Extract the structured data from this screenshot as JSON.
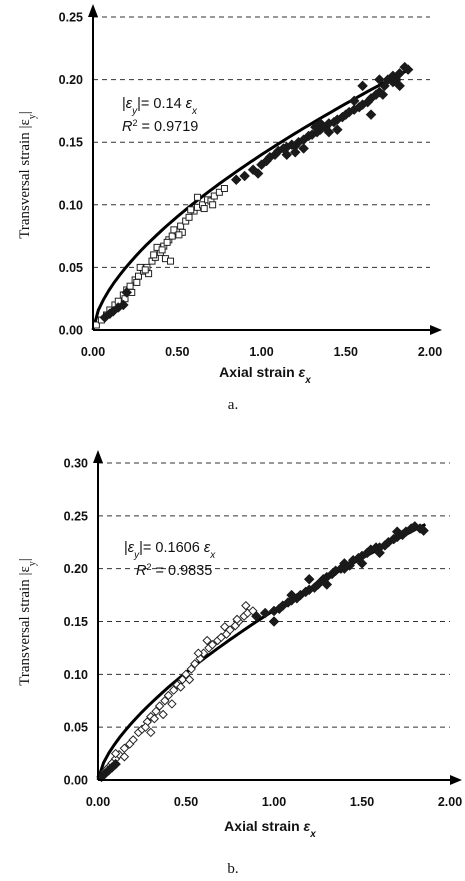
{
  "chart_data": [
    {
      "type": "scatter",
      "panel_caption": "a.",
      "xlabel": "Axial strain",
      "xlabel_symbol": "ε",
      "xlabel_sub": "x",
      "ylabel": "Transversal strain |ε",
      "ylabel_sub": "y",
      "ylabel_end": "|",
      "xlim": [
        0,
        2.0
      ],
      "ylim": [
        0,
        0.25
      ],
      "xticks": [
        "0.00",
        "0.50",
        "1.00",
        "1.50",
        "2.00"
      ],
      "yticks": [
        "0.00",
        "0.05",
        "0.10",
        "0.15",
        "0.20",
        "0.25"
      ],
      "grid": "horizontal dashed",
      "equation": {
        "line1_prefix": "|",
        "line1_sym": "ε",
        "line1_sub": "y",
        "line1_mid": "|= 0.14 ",
        "line1_sym2": "ε",
        "line1_sub2": "x",
        "line2_R": "R",
        "line2_sup": "2",
        "line2_val": " = 0.9719"
      },
      "fit": {
        "type": "power",
        "coef": 0.14,
        "exp": 0.63
      },
      "series": [
        {
          "marker": "open-square",
          "points": [
            [
              0.02,
              0.004
            ],
            [
              0.05,
              0.008
            ],
            [
              0.08,
              0.012
            ],
            [
              0.1,
              0.016
            ],
            [
              0.13,
              0.02
            ],
            [
              0.15,
              0.023
            ],
            [
              0.18,
              0.028
            ],
            [
              0.2,
              0.032
            ],
            [
              0.22,
              0.035
            ],
            [
              0.25,
              0.04
            ],
            [
              0.27,
              0.043
            ],
            [
              0.3,
              0.047
            ],
            [
              0.32,
              0.05
            ],
            [
              0.35,
              0.055
            ],
            [
              0.37,
              0.058
            ],
            [
              0.4,
              0.062
            ],
            [
              0.42,
              0.067
            ],
            [
              0.45,
              0.072
            ],
            [
              0.47,
              0.075
            ],
            [
              0.5,
              0.079
            ],
            [
              0.52,
              0.083
            ],
            [
              0.55,
              0.087
            ],
            [
              0.57,
              0.09
            ],
            [
              0.6,
              0.095
            ],
            [
              0.62,
              0.098
            ],
            [
              0.65,
              0.1
            ],
            [
              0.68,
              0.104
            ],
            [
              0.7,
              0.103
            ],
            [
              0.72,
              0.107
            ],
            [
              0.75,
              0.11
            ],
            [
              0.78,
              0.113
            ],
            [
              0.28,
              0.05
            ],
            [
              0.33,
              0.045
            ],
            [
              0.38,
              0.066
            ],
            [
              0.48,
              0.08
            ],
            [
              0.53,
              0.078
            ],
            [
              0.58,
              0.096
            ],
            [
              0.62,
              0.106
            ],
            [
              0.43,
              0.057
            ],
            [
              0.46,
              0.055
            ],
            [
              0.26,
              0.038
            ],
            [
              0.36,
              0.06
            ],
            [
              0.44,
              0.07
            ],
            [
              0.66,
              0.097
            ],
            [
              0.71,
              0.1
            ],
            [
              0.19,
              0.025
            ],
            [
              0.23,
              0.03
            ],
            [
              0.31,
              0.048
            ],
            [
              0.41,
              0.064
            ],
            [
              0.51,
              0.076
            ]
          ]
        },
        {
          "marker": "filled-diamond",
          "points": [
            [
              0.07,
              0.01
            ],
            [
              0.1,
              0.013
            ],
            [
              0.12,
              0.015
            ],
            [
              0.15,
              0.018
            ],
            [
              0.18,
              0.02
            ],
            [
              0.2,
              0.03
            ],
            [
              0.85,
              0.12
            ],
            [
              0.9,
              0.123
            ],
            [
              0.95,
              0.128
            ],
            [
              1.0,
              0.132
            ],
            [
              1.03,
              0.135
            ],
            [
              1.05,
              0.138
            ],
            [
              1.08,
              0.14
            ],
            [
              1.1,
              0.143
            ],
            [
              1.13,
              0.145
            ],
            [
              1.15,
              0.146
            ],
            [
              1.18,
              0.148
            ],
            [
              1.2,
              0.147
            ],
            [
              1.22,
              0.15
            ],
            [
              1.25,
              0.152
            ],
            [
              1.28,
              0.155
            ],
            [
              1.3,
              0.156
            ],
            [
              1.33,
              0.158
            ],
            [
              1.35,
              0.16
            ],
            [
              1.38,
              0.162
            ],
            [
              1.4,
              0.165
            ],
            [
              1.43,
              0.166
            ],
            [
              1.45,
              0.168
            ],
            [
              1.48,
              0.17
            ],
            [
              1.5,
              0.172
            ],
            [
              1.52,
              0.174
            ],
            [
              1.55,
              0.176
            ],
            [
              1.58,
              0.178
            ],
            [
              1.6,
              0.18
            ],
            [
              1.63,
              0.182
            ],
            [
              1.65,
              0.185
            ],
            [
              1.68,
              0.188
            ],
            [
              1.7,
              0.19
            ],
            [
              1.73,
              0.195
            ],
            [
              1.75,
              0.2
            ],
            [
              1.78,
              0.203
            ],
            [
              1.8,
              0.2
            ],
            [
              1.82,
              0.205
            ],
            [
              1.85,
              0.21
            ],
            [
              1.87,
              0.208
            ],
            [
              1.65,
              0.172
            ],
            [
              1.72,
              0.188
            ],
            [
              1.6,
              0.195
            ],
            [
              1.55,
              0.183
            ],
            [
              1.45,
              0.16
            ],
            [
              1.35,
              0.165
            ],
            [
              1.25,
              0.145
            ],
            [
              1.15,
              0.14
            ],
            [
              1.82,
              0.195
            ],
            [
              1.78,
              0.198
            ],
            [
              1.7,
              0.2
            ],
            [
              1.4,
              0.158
            ],
            [
              1.2,
              0.142
            ],
            [
              0.98,
              0.125
            ],
            [
              1.32,
              0.162
            ]
          ]
        }
      ]
    },
    {
      "type": "scatter",
      "panel_caption": "b.",
      "xlabel": "Axial strain",
      "xlabel_symbol": "ε",
      "xlabel_sub": "x",
      "ylabel": "Transversal strain |ε",
      "ylabel_sub": "y",
      "ylabel_end": "|",
      "xlim": [
        0,
        2.0
      ],
      "ylim": [
        0,
        0.3
      ],
      "xticks": [
        "0.00",
        "0.50",
        "1.00",
        "1.50",
        "2.00"
      ],
      "yticks": [
        "0.00",
        "0.05",
        "0.10",
        "0.15",
        "0.20",
        "0.25",
        "0.30"
      ],
      "grid": "horizontal dashed",
      "equation": {
        "line1_prefix": "|",
        "line1_sym": "ε",
        "line1_sub": "y",
        "line1_mid": "|= 0.1606 ",
        "line1_sym2": "ε",
        "line1_sub2": "x",
        "line2_R": "R",
        "line2_sup": "2",
        "line2_val": " = 0.9835"
      },
      "fit": {
        "type": "power",
        "coef": 0.1606,
        "exp": 0.66
      },
      "series": [
        {
          "marker": "open-diamond",
          "points": [
            [
              0.02,
              0.004
            ],
            [
              0.04,
              0.008
            ],
            [
              0.06,
              0.012
            ],
            [
              0.08,
              0.016
            ],
            [
              0.1,
              0.02
            ],
            [
              0.12,
              0.024
            ],
            [
              0.15,
              0.03
            ],
            [
              0.18,
              0.034
            ],
            [
              0.2,
              0.038
            ],
            [
              0.23,
              0.045
            ],
            [
              0.25,
              0.048
            ],
            [
              0.28,
              0.055
            ],
            [
              0.3,
              0.06
            ],
            [
              0.33,
              0.065
            ],
            [
              0.35,
              0.07
            ],
            [
              0.38,
              0.075
            ],
            [
              0.4,
              0.08
            ],
            [
              0.43,
              0.085
            ],
            [
              0.45,
              0.09
            ],
            [
              0.48,
              0.095
            ],
            [
              0.5,
              0.1
            ],
            [
              0.53,
              0.105
            ],
            [
              0.55,
              0.11
            ],
            [
              0.58,
              0.115
            ],
            [
              0.6,
              0.12
            ],
            [
              0.63,
              0.125
            ],
            [
              0.65,
              0.128
            ],
            [
              0.68,
              0.132
            ],
            [
              0.7,
              0.135
            ],
            [
              0.73,
              0.138
            ],
            [
              0.75,
              0.142
            ],
            [
              0.78,
              0.146
            ],
            [
              0.8,
              0.15
            ],
            [
              0.83,
              0.155
            ],
            [
              0.85,
              0.158
            ],
            [
              0.88,
              0.16
            ],
            [
              0.3,
              0.045
            ],
            [
              0.37,
              0.062
            ],
            [
              0.42,
              0.072
            ],
            [
              0.47,
              0.088
            ],
            [
              0.52,
              0.095
            ],
            [
              0.57,
              0.12
            ],
            [
              0.62,
              0.132
            ],
            [
              0.72,
              0.145
            ],
            [
              0.79,
              0.152
            ],
            [
              0.84,
              0.165
            ],
            [
              0.27,
              0.05
            ],
            [
              0.32,
              0.058
            ],
            [
              0.15,
              0.022
            ],
            [
              0.1,
              0.025
            ],
            [
              0.05,
              0.01
            ]
          ]
        },
        {
          "marker": "filled-diamond",
          "points": [
            [
              0.02,
              0.003
            ],
            [
              0.04,
              0.006
            ],
            [
              0.06,
              0.009
            ],
            [
              0.08,
              0.012
            ],
            [
              0.1,
              0.015
            ],
            [
              0.9,
              0.155
            ],
            [
              0.95,
              0.158
            ],
            [
              1.0,
              0.16
            ],
            [
              1.03,
              0.162
            ],
            [
              1.05,
              0.165
            ],
            [
              1.08,
              0.168
            ],
            [
              1.1,
              0.17
            ],
            [
              1.13,
              0.172
            ],
            [
              1.15,
              0.175
            ],
            [
              1.18,
              0.178
            ],
            [
              1.2,
              0.18
            ],
            [
              1.23,
              0.182
            ],
            [
              1.25,
              0.185
            ],
            [
              1.28,
              0.19
            ],
            [
              1.3,
              0.192
            ],
            [
              1.33,
              0.195
            ],
            [
              1.35,
              0.198
            ],
            [
              1.38,
              0.2
            ],
            [
              1.4,
              0.205
            ],
            [
              1.43,
              0.203
            ],
            [
              1.45,
              0.208
            ],
            [
              1.48,
              0.21
            ],
            [
              1.5,
              0.212
            ],
            [
              1.53,
              0.215
            ],
            [
              1.55,
              0.218
            ],
            [
              1.58,
              0.22
            ],
            [
              1.6,
              0.22
            ],
            [
              1.63,
              0.222
            ],
            [
              1.65,
              0.225
            ],
            [
              1.68,
              0.228
            ],
            [
              1.7,
              0.23
            ],
            [
              1.73,
              0.232
            ],
            [
              1.75,
              0.235
            ],
            [
              1.78,
              0.238
            ],
            [
              1.8,
              0.24
            ],
            [
              1.83,
              0.238
            ],
            [
              1.85,
              0.236
            ],
            [
              1.2,
              0.19
            ],
            [
              1.3,
              0.185
            ],
            [
              1.4,
              0.2
            ],
            [
              1.5,
              0.205
            ],
            [
              1.6,
              0.215
            ],
            [
              1.7,
              0.235
            ],
            [
              1.1,
              0.175
            ],
            [
              1.0,
              0.15
            ]
          ]
        }
      ]
    }
  ]
}
